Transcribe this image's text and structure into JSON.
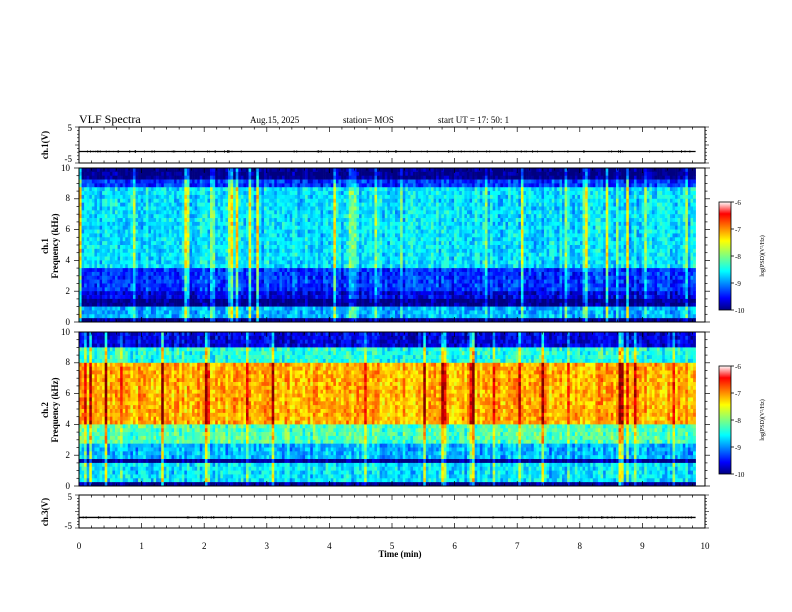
{
  "header": {
    "title": "VLF Spectra",
    "date": "Aug.15, 2025",
    "station": "station= MOS",
    "start": "start  UT  =   17: 50: 1"
  },
  "chart_data": [
    {
      "type": "line",
      "name": "ch1-waveform",
      "ylabel": "ch.1(V)",
      "ylim": [
        -5,
        5
      ],
      "yticks": [
        "5",
        "-5"
      ],
      "xlim": [
        0,
        10
      ],
      "baseline": -1.8
    },
    {
      "type": "heatmap",
      "name": "ch1-spectrogram",
      "ylabel": "ch.1\nFrequency (kHz)",
      "ylim": [
        0,
        10
      ],
      "yticks": [
        "0",
        "2",
        "4",
        "6",
        "8",
        "10"
      ],
      "xlim": [
        0,
        9.85
      ],
      "colorbar": {
        "label": "log(PSD)(V²/Hz)",
        "range": [
          -10,
          -6
        ],
        "ticks": [
          "-6",
          "-7",
          "-8",
          "-9",
          "-10"
        ]
      },
      "bands": [
        {
          "f": [
            0,
            0.3
          ],
          "level": -10
        },
        {
          "f": [
            0.3,
            0.9
          ],
          "level": -8.8
        },
        {
          "f": [
            0.9,
            1.5
          ],
          "level": -10
        },
        {
          "f": [
            1.5,
            1.9
          ],
          "level": -9.6
        },
        {
          "f": [
            1.9,
            3.5
          ],
          "level": -9.3
        },
        {
          "f": [
            3.5,
            8.8
          ],
          "level": -8.6
        },
        {
          "f": [
            8.8,
            9.3
          ],
          "level": -9.3
        },
        {
          "f": [
            9.3,
            10
          ],
          "level": -10
        }
      ]
    },
    {
      "type": "heatmap",
      "name": "ch2-spectrogram",
      "ylabel": "ch.2\nFrequency (kHz)",
      "ylim": [
        0,
        10
      ],
      "yticks": [
        "0",
        "2",
        "4",
        "6",
        "8",
        "10"
      ],
      "xlim": [
        0,
        9.85
      ],
      "colorbar": {
        "label": "log(PSD)(V²/Hz)",
        "range": [
          -10,
          -6
        ],
        "ticks": [
          "-6",
          "-7",
          "-8",
          "-9",
          "-10"
        ]
      },
      "bands": [
        {
          "f": [
            0,
            0.3
          ],
          "level": -10
        },
        {
          "f": [
            0.3,
            1.4
          ],
          "level": -8.6
        },
        {
          "f": [
            1.4,
            1.8
          ],
          "level": -10
        },
        {
          "f": [
            1.8,
            2.7
          ],
          "level": -8.8
        },
        {
          "f": [
            2.7,
            4.0
          ],
          "level": -8.2
        },
        {
          "f": [
            4.0,
            8.0
          ],
          "level": -7.2
        },
        {
          "f": [
            8.0,
            9.0
          ],
          "level": -8.4
        },
        {
          "f": [
            9.0,
            10
          ],
          "level": -9.6
        }
      ]
    },
    {
      "type": "line",
      "name": "ch3-waveform",
      "ylabel": "ch.3(V)",
      "ylim": [
        -5,
        5
      ],
      "yticks": [
        "5",
        "-5"
      ],
      "xlim": [
        0,
        10
      ],
      "baseline": -1.8,
      "xlabel": "Time (min)",
      "xticks": [
        "0",
        "1",
        "2",
        "3",
        "4",
        "5",
        "6",
        "7",
        "8",
        "9",
        "10"
      ]
    }
  ]
}
